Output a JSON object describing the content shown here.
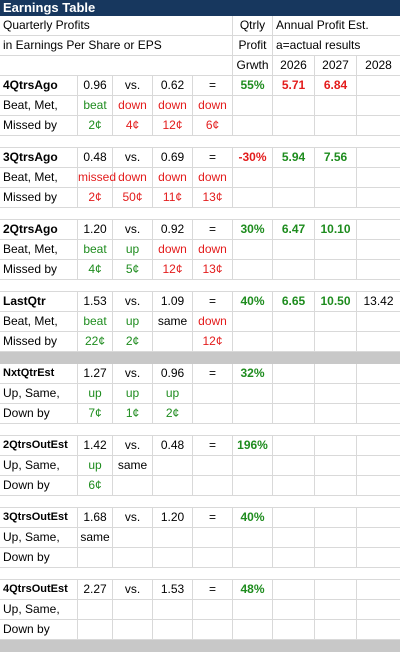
{
  "title": "Earnings Table",
  "header": {
    "line1": "Quarterly Profits",
    "line2": "in Earnings Per Share or EPS",
    "qtrly1": "Qtrly",
    "qtrly2": "Profit",
    "qtrly3": "Grwth",
    "annual1": "Annual Profit Est.",
    "annual2": "a=actual results",
    "years": [
      "2026",
      "2027",
      "2028"
    ]
  },
  "sublabels": {
    "beat_met": "Beat, Met,",
    "missed_by": "Missed by",
    "up_same": "Up, Same,",
    "down_by": "Down by"
  },
  "rows": [
    {
      "label": "4QtrsAgo",
      "eps": "0.96",
      "vs": "vs.",
      "prior": "0.62",
      "eq": "=",
      "growth": "55%",
      "a2026": "5.71",
      "a2027": "6.84",
      "a2028": "",
      "status": [
        "beat",
        "down",
        "down",
        "down"
      ],
      "amount": [
        "2¢",
        "4¢",
        "12¢",
        "6¢"
      ]
    },
    {
      "label": "3QtrsAgo",
      "eps": "0.48",
      "vs": "vs.",
      "prior": "0.69",
      "eq": "=",
      "growth": "-30%",
      "a2026": "5.94",
      "a2027": "7.56",
      "a2028": "",
      "status": [
        "missed",
        "down",
        "down",
        "down"
      ],
      "amount": [
        "2¢",
        "50¢",
        "11¢",
        "13¢"
      ]
    },
    {
      "label": "2QtrsAgo",
      "eps": "1.20",
      "vs": "vs.",
      "prior": "0.92",
      "eq": "=",
      "growth": "30%",
      "a2026": "6.47",
      "a2027": "10.10",
      "a2028": "",
      "status": [
        "beat",
        "up",
        "down",
        "down"
      ],
      "amount": [
        "4¢",
        "5¢",
        "12¢",
        "13¢"
      ]
    },
    {
      "label": "LastQtr",
      "eps": "1.53",
      "vs": "vs.",
      "prior": "1.09",
      "eq": "=",
      "growth": "40%",
      "a2026": "6.65",
      "a2027": "10.50",
      "a2028": "13.42",
      "status": [
        "beat",
        "up",
        "same",
        "down"
      ],
      "amount": [
        "22¢",
        "2¢",
        "",
        "12¢"
      ]
    }
  ],
  "estimates": [
    {
      "label": "NxtQtrEst",
      "eps": "1.27",
      "vs": "vs.",
      "prior": "0.96",
      "eq": "=",
      "growth": "32%",
      "status": [
        "up",
        "up",
        "up"
      ],
      "amount": [
        "7¢",
        "1¢",
        "2¢"
      ]
    },
    {
      "label": "2QtrsOutEst",
      "eps": "1.42",
      "vs": "vs.",
      "prior": "0.48",
      "eq": "=",
      "growth": "196%",
      "status": [
        "up",
        "same",
        ""
      ],
      "amount": [
        "6¢",
        "",
        ""
      ]
    },
    {
      "label": "3QtrsOutEst",
      "eps": "1.68",
      "vs": "vs.",
      "prior": "1.20",
      "eq": "=",
      "growth": "40%",
      "status": [
        "same",
        "",
        ""
      ],
      "amount": [
        "",
        "",
        ""
      ]
    },
    {
      "label": "4QtrsOutEst",
      "eps": "2.27",
      "vs": "vs.",
      "prior": "1.53",
      "eq": "=",
      "growth": "48%",
      "status": [
        "",
        "",
        ""
      ],
      "amount": [
        "",
        "",
        ""
      ]
    }
  ],
  "colors": {
    "title_bg": "#17375e",
    "positive": "#1e8c1e",
    "negative": "#e31c1c",
    "separator": "#c8c8c8"
  }
}
